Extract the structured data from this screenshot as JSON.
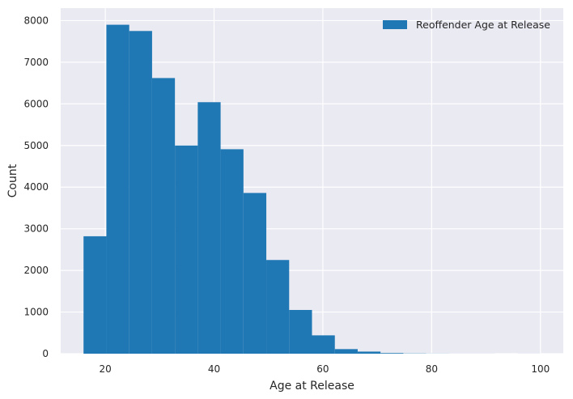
{
  "chart_data": {
    "type": "bar",
    "title": "",
    "xlabel": "Age at Release",
    "ylabel": "Count",
    "xlim": [
      11.8,
      104.2
    ],
    "ylim": [
      0,
      8300
    ],
    "x_ticks": [
      20,
      40,
      60,
      80,
      100
    ],
    "y_ticks": [
      0,
      1000,
      2000,
      3000,
      4000,
      5000,
      6000,
      7000,
      8000
    ],
    "grid": true,
    "legend_position": "top-right",
    "series": [
      {
        "name": "Reoffender Age at Release",
        "color": "#1f77b4",
        "bin_edges": [
          16,
          20.2,
          24.4,
          28.6,
          32.8,
          37.0,
          41.2,
          45.4,
          49.6,
          53.8,
          58.0,
          62.2,
          66.4,
          70.6,
          74.8,
          79.0,
          83.2,
          87.4,
          91.6,
          95.8,
          100
        ],
        "values": [
          2820,
          7900,
          7750,
          6620,
          5000,
          6040,
          4910,
          3860,
          2250,
          1050,
          440,
          110,
          50,
          15,
          5,
          2,
          1,
          1,
          0,
          1
        ]
      }
    ]
  }
}
